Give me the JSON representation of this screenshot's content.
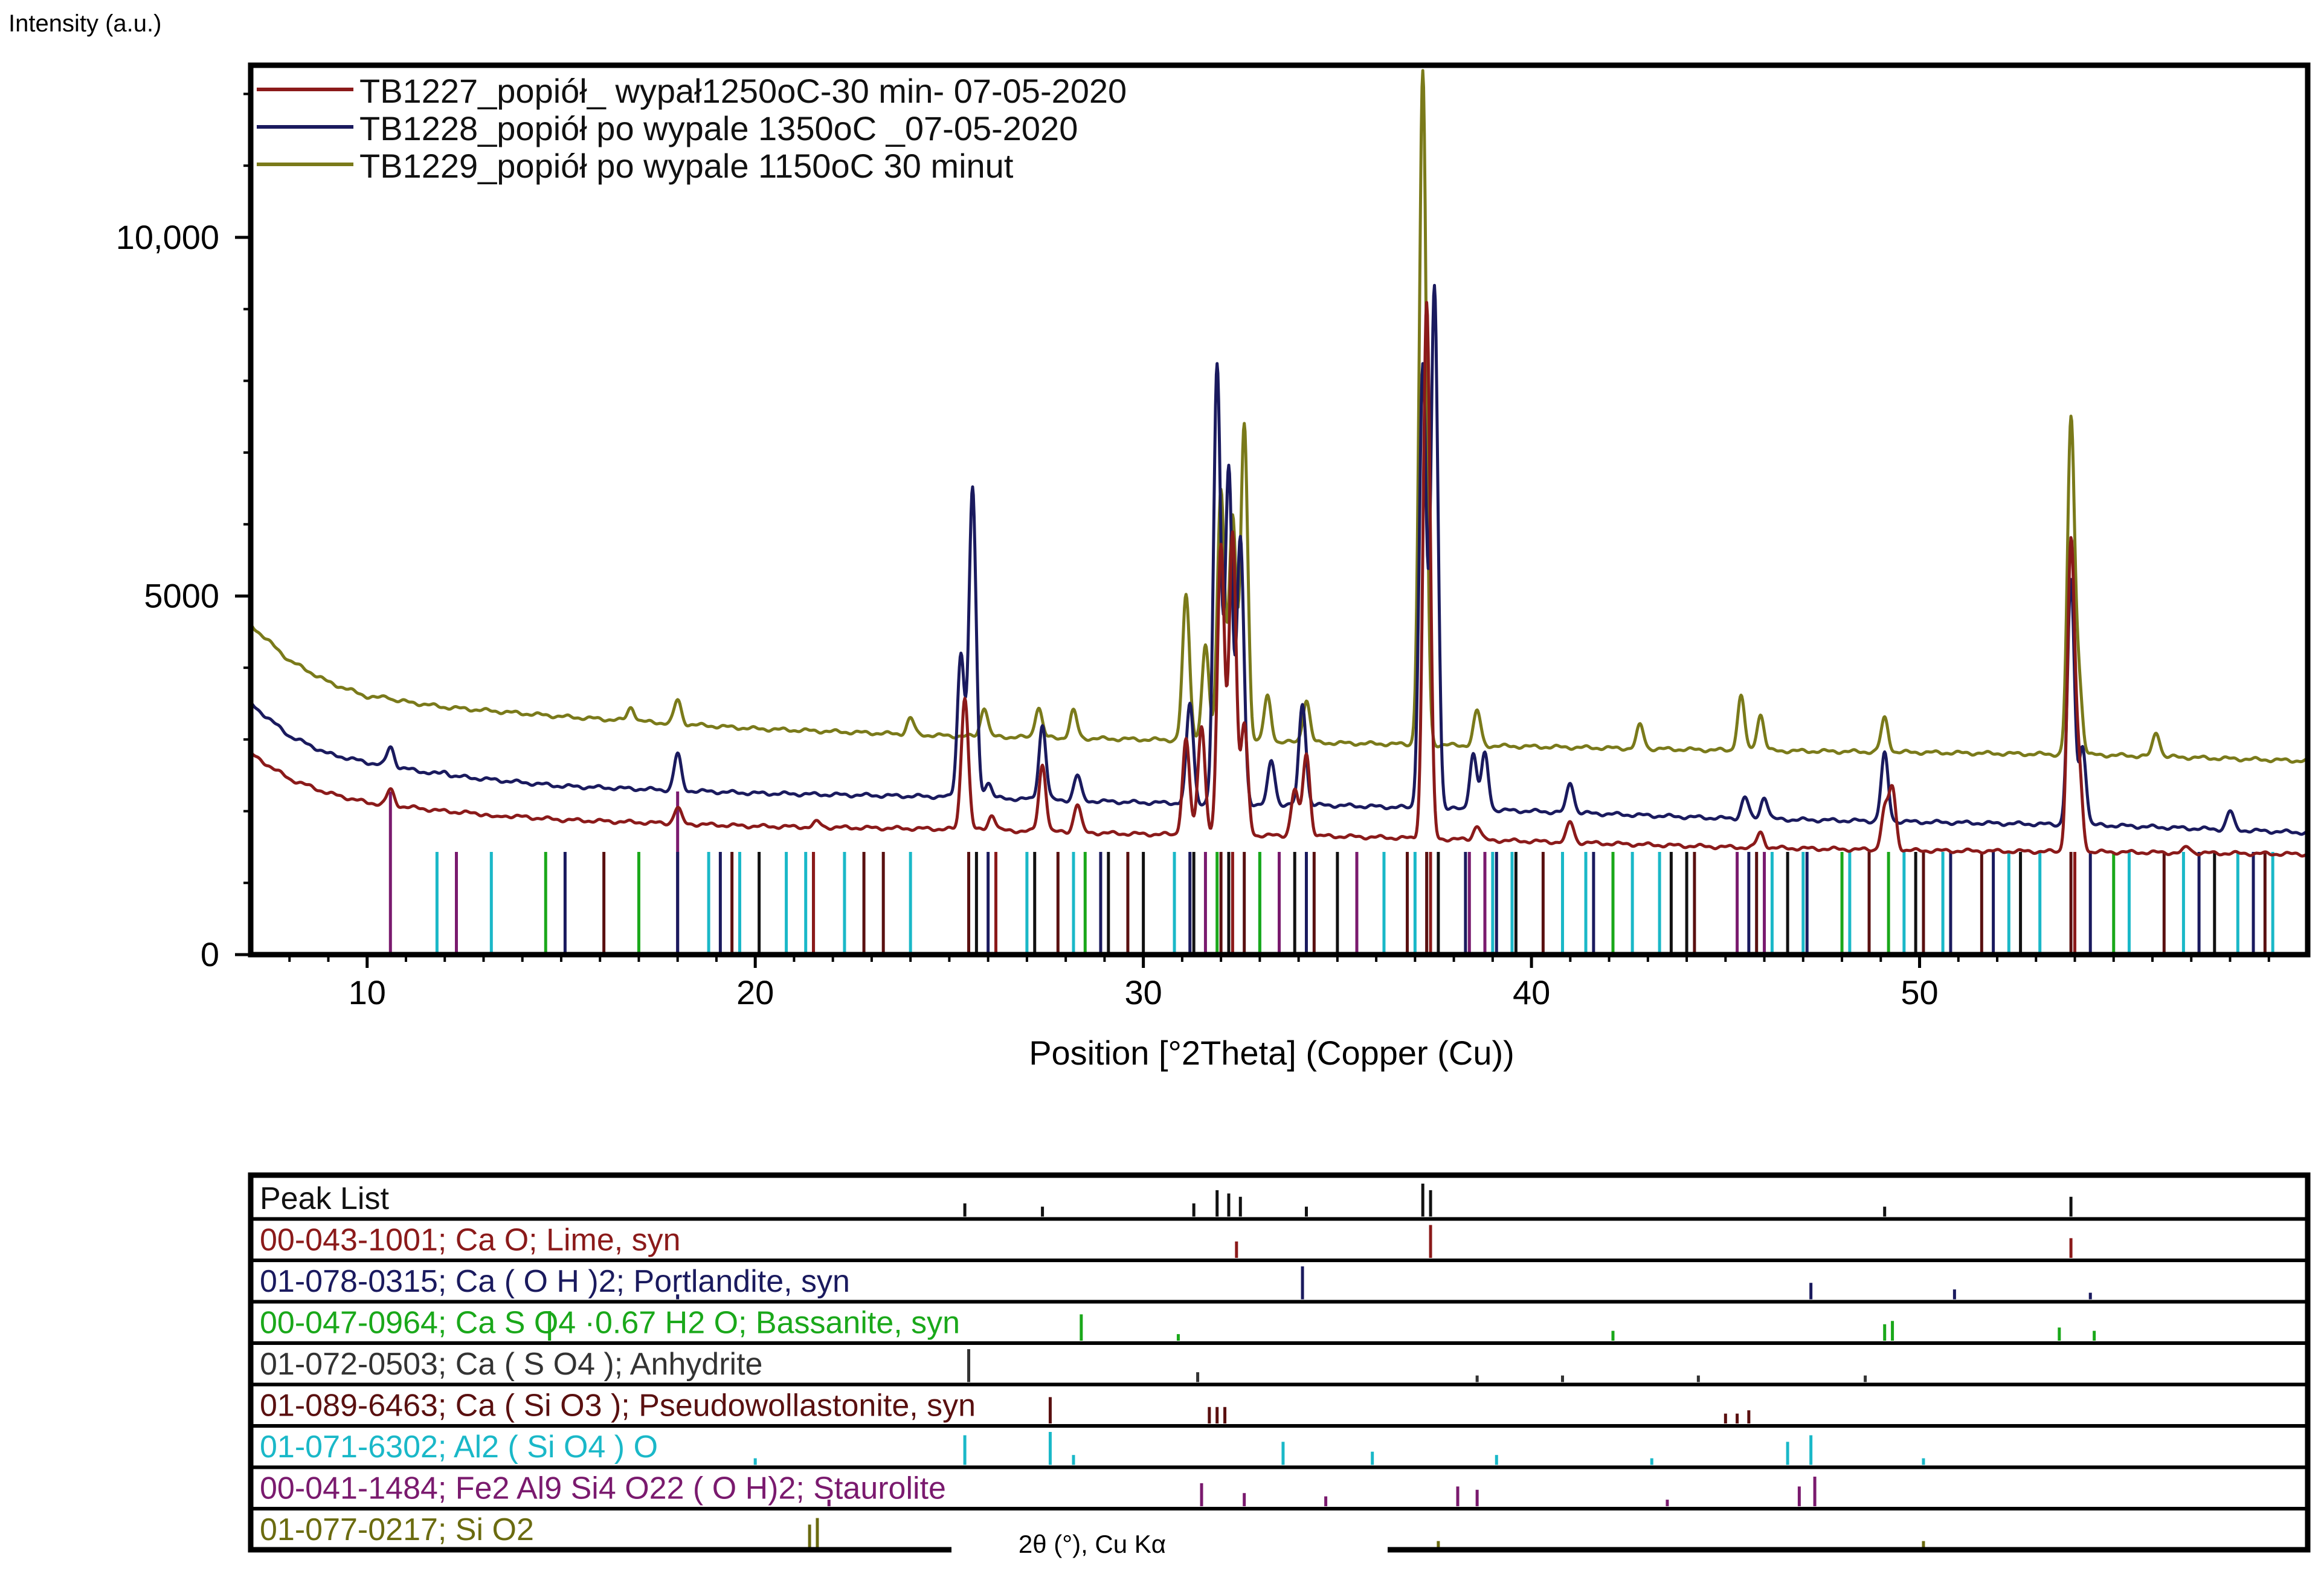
{
  "chart_data": {
    "type": "line",
    "ylabel": "Intensity (a.u.)",
    "xlabel": "Position [°2Theta] (Copper (Cu))",
    "xlim": [
      7,
      60
    ],
    "ylim": [
      0,
      12400
    ],
    "x_ticks": [
      10,
      20,
      30,
      40,
      50
    ],
    "y_ticks": [
      0,
      5000,
      10000
    ],
    "y_tick_labels": [
      "0",
      "5000",
      "10,000"
    ],
    "legend_position": "top-left",
    "series": [
      {
        "name": "TB1227_popiół_ wypał1250oC-30 min- 07-05-2020",
        "color": "#8b1a1a",
        "baseline": [
          [
            7,
            2800
          ],
          [
            8,
            2450
          ],
          [
            9,
            2250
          ],
          [
            10,
            2120
          ],
          [
            12,
            2000
          ],
          [
            15,
            1880
          ],
          [
            20,
            1790
          ],
          [
            25,
            1750
          ],
          [
            30,
            1680
          ],
          [
            35,
            1650
          ],
          [
            40,
            1580
          ],
          [
            45,
            1500
          ],
          [
            50,
            1450
          ],
          [
            55,
            1430
          ],
          [
            60,
            1400
          ]
        ],
        "peaks": [
          [
            10.6,
            2300
          ],
          [
            12.0,
            2000
          ],
          [
            13.3,
            1900
          ],
          [
            18.0,
            2050
          ],
          [
            21.6,
            1850
          ],
          [
            25.4,
            3600
          ],
          [
            26.1,
            1950
          ],
          [
            27.4,
            2650
          ],
          [
            28.3,
            2100
          ],
          [
            31.1,
            3000
          ],
          [
            31.5,
            3200
          ],
          [
            32.0,
            5700
          ],
          [
            32.3,
            5900
          ],
          [
            32.6,
            3200
          ],
          [
            33.9,
            2300
          ],
          [
            34.2,
            2800
          ],
          [
            37.3,
            9100
          ],
          [
            38.6,
            1800
          ],
          [
            41.0,
            1850
          ],
          [
            45.9,
            1700
          ],
          [
            49.1,
            2000
          ],
          [
            49.3,
            2300
          ],
          [
            53.9,
            5700
          ],
          [
            54.1,
            2600
          ],
          [
            56.9,
            1500
          ]
        ]
      },
      {
        "name": "TB1228_popiół po wypale 1350oC _07-05-2020",
        "color": "#1a1a5e",
        "baseline": [
          [
            7,
            3500
          ],
          [
            8,
            3050
          ],
          [
            9,
            2800
          ],
          [
            10,
            2680
          ],
          [
            12,
            2500
          ],
          [
            15,
            2350
          ],
          [
            20,
            2250
          ],
          [
            25,
            2200
          ],
          [
            30,
            2120
          ],
          [
            35,
            2080
          ],
          [
            40,
            2000
          ],
          [
            45,
            1900
          ],
          [
            50,
            1850
          ],
          [
            55,
            1800
          ],
          [
            60,
            1700
          ]
        ],
        "peaks": [
          [
            10.6,
            2900
          ],
          [
            12.0,
            2550
          ],
          [
            18.0,
            2800
          ],
          [
            25.3,
            4200
          ],
          [
            25.6,
            6500
          ],
          [
            26.0,
            2400
          ],
          [
            27.4,
            3200
          ],
          [
            28.3,
            2500
          ],
          [
            31.2,
            3500
          ],
          [
            31.9,
            8200
          ],
          [
            32.2,
            6800
          ],
          [
            32.5,
            5800
          ],
          [
            33.3,
            2700
          ],
          [
            34.1,
            3500
          ],
          [
            37.2,
            8200
          ],
          [
            37.5,
            9300
          ],
          [
            38.5,
            2800
          ],
          [
            38.8,
            2800
          ],
          [
            41.0,
            2400
          ],
          [
            45.5,
            2200
          ],
          [
            46.0,
            2200
          ],
          [
            49.1,
            2800
          ],
          [
            53.9,
            5200
          ],
          [
            54.2,
            2900
          ],
          [
            58.0,
            2000
          ]
        ]
      },
      {
        "name": "TB1229_popiół po wypale 1150oC 30 minut",
        "color": "#7a7a1a",
        "baseline": [
          [
            7,
            4600
          ],
          [
            8,
            4100
          ],
          [
            9,
            3800
          ],
          [
            10,
            3600
          ],
          [
            12,
            3450
          ],
          [
            15,
            3320
          ],
          [
            20,
            3150
          ],
          [
            25,
            3050
          ],
          [
            30,
            3000
          ],
          [
            35,
            2950
          ],
          [
            40,
            2900
          ],
          [
            45,
            2850
          ],
          [
            50,
            2820
          ],
          [
            55,
            2780
          ],
          [
            60,
            2700
          ]
        ],
        "peaks": [
          [
            10.5,
            3600
          ],
          [
            16.8,
            3450
          ],
          [
            18.0,
            3550
          ],
          [
            24.0,
            3300
          ],
          [
            25.9,
            3450
          ],
          [
            27.3,
            3450
          ],
          [
            28.2,
            3400
          ],
          [
            31.1,
            5000
          ],
          [
            31.6,
            4300
          ],
          [
            32.0,
            6500
          ],
          [
            32.3,
            6100
          ],
          [
            32.6,
            7400
          ],
          [
            33.2,
            3600
          ],
          [
            34.2,
            3550
          ],
          [
            37.2,
            12300
          ],
          [
            38.6,
            3400
          ],
          [
            42.8,
            3200
          ],
          [
            45.4,
            3600
          ],
          [
            45.9,
            3350
          ],
          [
            49.1,
            3300
          ],
          [
            53.9,
            7400
          ],
          [
            54.1,
            3800
          ],
          [
            56.1,
            3100
          ]
        ]
      }
    ],
    "reference_markers": [
      {
        "color": "#7a1a6e",
        "x": [
          10.6,
          12.3,
          18.0,
          31.6,
          33.5,
          35.5,
          38.4,
          38.8,
          45.3,
          46.0
        ]
      },
      {
        "color": "#1ab8c8",
        "x": [
          11.8,
          13.2,
          18.8,
          19.6,
          20.8,
          21.3,
          22.3,
          24.0,
          27.0,
          28.2,
          30.8,
          33.0,
          36.2,
          37.0,
          39.0,
          39.5,
          40.8,
          41.4,
          42.6,
          43.3,
          46.2,
          47.0,
          48.2,
          49.6,
          50.6,
          52.3,
          53.1,
          55.4,
          56.8,
          58.2,
          59.1
        ]
      },
      {
        "color": "#1aa81a",
        "x": [
          14.6,
          17.0,
          28.5,
          31.9,
          33.0,
          42.1,
          48.0,
          49.2,
          55.0
        ]
      },
      {
        "color": "#1a1a5e",
        "x": [
          15.1,
          18.0,
          19.1,
          26.0,
          28.9,
          31.2,
          34.2,
          38.3,
          39.1,
          41.6,
          45.6,
          47.1,
          50.8,
          51.9,
          54.4,
          57.2,
          58.6
        ]
      },
      {
        "color": "#5a1010",
        "x": [
          16.1,
          19.4,
          21.5,
          22.8,
          23.3,
          25.5,
          27.8,
          29.6,
          32.0,
          32.6,
          34.4,
          36.8,
          37.3,
          40.3,
          44.2,
          45.8,
          48.7,
          50.1,
          51.6,
          53.9,
          56.3,
          58.9
        ]
      },
      {
        "color": "#111111",
        "x": [
          20.1,
          25.7,
          27.2,
          29.1,
          30.0,
          31.3,
          32.2,
          33.9,
          35.0,
          37.6,
          39.6,
          43.6,
          44.0,
          46.6,
          49.9,
          52.6,
          57.6
        ]
      },
      {
        "color": "#8b1a1a",
        "x": [
          21.5,
          26.2,
          32.3,
          37.4,
          54.0
        ]
      }
    ]
  },
  "panel": {
    "rows": [
      {
        "label": "Peak List",
        "color": "#111111"
      },
      {
        "label": "00-043-1001; Ca O; Lime, syn",
        "color": "#8b1a1a"
      },
      {
        "label": "01-078-0315; Ca ( O H )2; Portlandite, syn",
        "color": "#1a1a5e"
      },
      {
        "label": "00-047-0964; Ca S O4 ·0.67 H2 O; Bassanite, syn",
        "color": "#1aa81a"
      },
      {
        "label": "01-072-0503; Ca ( S O4 ); Anhydrite",
        "color": "#333333"
      },
      {
        "label": "01-089-6463; Ca ( Si O3 ); Pseudowollastonite, syn",
        "color": "#5a1010"
      },
      {
        "label": "01-071-6302; Al2 ( Si O4 ) O",
        "color": "#1ab8c8"
      },
      {
        "label": "00-041-1484; Fe2 Al9 Si4 O22 ( O H)2; Staurolite",
        "color": "#7a1a6e"
      },
      {
        "label": "01-077-0217; Si O2",
        "color": "#6b6b10"
      }
    ],
    "sticks": [
      [
        [
          25.4,
          0.4
        ],
        [
          27.4,
          0.3
        ],
        [
          31.3,
          0.4
        ],
        [
          31.9,
          0.8
        ],
        [
          32.2,
          0.7
        ],
        [
          32.5,
          0.6
        ],
        [
          34.2,
          0.3
        ],
        [
          37.2,
          1.0
        ],
        [
          37.4,
          0.8
        ],
        [
          49.1,
          0.3
        ],
        [
          53.9,
          0.6
        ]
      ],
      [
        [
          32.4,
          0.5
        ],
        [
          37.4,
          1.0
        ],
        [
          53.9,
          0.6
        ]
      ],
      [
        [
          18.0,
          0.15
        ],
        [
          34.1,
          1.0
        ],
        [
          47.2,
          0.5
        ],
        [
          50.9,
          0.3
        ],
        [
          54.4,
          0.2
        ]
      ],
      [
        [
          14.7,
          0.9
        ],
        [
          28.4,
          0.8
        ],
        [
          30.9,
          0.2
        ],
        [
          42.1,
          0.3
        ],
        [
          49.1,
          0.5
        ],
        [
          49.3,
          0.6
        ],
        [
          53.6,
          0.4
        ],
        [
          54.5,
          0.3
        ]
      ],
      [
        [
          25.5,
          1.0
        ],
        [
          31.4,
          0.3
        ],
        [
          38.6,
          0.2
        ],
        [
          40.8,
          0.2
        ],
        [
          44.3,
          0.2
        ],
        [
          48.6,
          0.2
        ]
      ],
      [
        [
          27.6,
          0.8
        ],
        [
          31.7,
          0.5
        ],
        [
          31.9,
          0.5
        ],
        [
          32.1,
          0.5
        ],
        [
          45.0,
          0.3
        ],
        [
          45.3,
          0.3
        ],
        [
          45.6,
          0.4
        ]
      ],
      [
        [
          20.0,
          0.2
        ],
        [
          25.4,
          0.9
        ],
        [
          27.6,
          1.0
        ],
        [
          28.2,
          0.3
        ],
        [
          33.6,
          0.7
        ],
        [
          35.9,
          0.4
        ],
        [
          39.1,
          0.3
        ],
        [
          43.1,
          0.2
        ],
        [
          46.6,
          0.7
        ],
        [
          47.2,
          0.9
        ],
        [
          50.1,
          0.2
        ]
      ],
      [
        [
          21.9,
          0.2
        ],
        [
          31.5,
          0.7
        ],
        [
          32.6,
          0.4
        ],
        [
          34.7,
          0.3
        ],
        [
          38.1,
          0.6
        ],
        [
          38.6,
          0.5
        ],
        [
          43.5,
          0.2
        ],
        [
          46.9,
          0.6
        ],
        [
          47.3,
          0.9
        ]
      ],
      [
        [
          21.4,
          0.7
        ],
        [
          21.6,
          0.9
        ],
        [
          26.8,
          0.2
        ],
        [
          37.6,
          0.2
        ],
        [
          50.1,
          0.2
        ]
      ]
    ],
    "footer_label": "2θ (°), Cu Kα"
  }
}
